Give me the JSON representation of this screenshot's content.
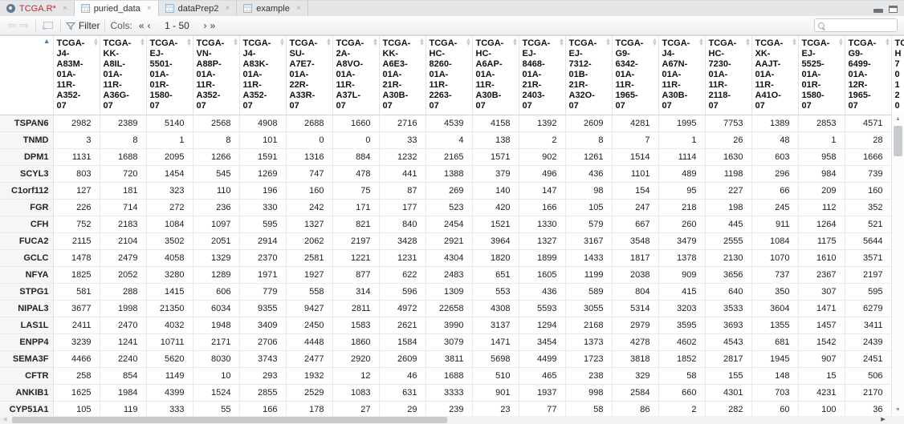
{
  "tabs": [
    {
      "label": "TCGA.R*",
      "icon": "r-script-icon",
      "text_color": "#cc2525",
      "active": false
    },
    {
      "label": "puried_data",
      "icon": "grid-icon",
      "text_color": "#333333",
      "active": true
    },
    {
      "label": "dataPrep2",
      "icon": "grid-icon",
      "text_color": "#333333",
      "active": false
    },
    {
      "label": "example",
      "icon": "grid-icon",
      "text_color": "#333333",
      "active": false
    }
  ],
  "icons": {
    "close": "×",
    "back": "⇦",
    "forward": "⇨",
    "sort_ascending": "▲",
    "sort_up": "▴",
    "sort_down": "▾",
    "scroll_up": "▲",
    "scroll_down": "▼",
    "scroll_left": "◀",
    "scroll_right": "▶"
  },
  "toolbar": {
    "filter_label": "Filter",
    "cols_label": "Cols:",
    "page_first": "«",
    "page_prev": "‹",
    "range_text": "1 - 50",
    "page_next": "›",
    "page_last": "»",
    "search_placeholder": ""
  },
  "colors": {
    "sort_accent": "#3e85c7",
    "active_tab_bg": "#fafbfc",
    "row_header_bg": "#f4f6f8"
  },
  "grid": {
    "sort": {
      "column": "row-names",
      "direction": "ascending"
    },
    "columns": [
      "TCGA-J4-A83M-01A-11R-A352-07",
      "TCGA-KK-A8IL-01A-11R-A36G-07",
      "TCGA-EJ-5501-01A-01R-1580-07",
      "TCGA-VN-A88P-01A-11R-A352-07",
      "TCGA-J4-A83K-01A-11R-A352-07",
      "TCGA-SU-A7E7-01A-22R-A33R-07",
      "TCGA-2A-A8VO-01A-11R-A37L-07",
      "TCGA-KK-A6E3-01A-21R-A30B-07",
      "TCGA-HC-8260-01A-11R-2263-07",
      "TCGA-HC-A6AP-01A-11R-A30B-07",
      "TCGA-EJ-8468-01A-21R-2403-07",
      "TCGA-EJ-7312-01B-21R-A32O-07",
      "TCGA-G9-6342-01A-11R-1965-07",
      "TCGA-J4-A67N-01A-11R-A30B-07",
      "TCGA-HC-7230-01A-11R-2118-07",
      "TCGA-XK-AAJT-01A-11R-A41O-07",
      "TCGA-EJ-5525-01A-01R-1580-07",
      "TCGA-G9-6499-01A-12R-1965-07"
    ],
    "partial_column_lines": [
      "TC",
      "H",
      "7",
      "0",
      "1",
      "2",
      "0"
    ],
    "rows": [
      {
        "name": "TSPAN6",
        "values": [
          2982,
          2389,
          5140,
          2568,
          4908,
          2688,
          1660,
          2716,
          4539,
          4158,
          1392,
          2609,
          4281,
          1995,
          7753,
          1389,
          2853,
          4571
        ]
      },
      {
        "name": "TNMD",
        "values": [
          3,
          8,
          1,
          8,
          101,
          0,
          0,
          33,
          4,
          138,
          2,
          8,
          7,
          1,
          26,
          48,
          1,
          28
        ]
      },
      {
        "name": "DPM1",
        "values": [
          1131,
          1688,
          2095,
          1266,
          1591,
          1316,
          884,
          1232,
          2165,
          1571,
          902,
          1261,
          1514,
          1114,
          1630,
          603,
          958,
          1666
        ]
      },
      {
        "name": "SCYL3",
        "values": [
          803,
          720,
          1454,
          545,
          1269,
          747,
          478,
          441,
          1388,
          379,
          496,
          436,
          1101,
          489,
          1198,
          296,
          984,
          739
        ]
      },
      {
        "name": "C1orf112",
        "values": [
          127,
          181,
          323,
          110,
          196,
          160,
          75,
          87,
          269,
          140,
          147,
          98,
          154,
          95,
          227,
          66,
          209,
          160
        ]
      },
      {
        "name": "FGR",
        "values": [
          226,
          714,
          272,
          236,
          330,
          242,
          171,
          177,
          523,
          420,
          166,
          105,
          247,
          218,
          198,
          245,
          112,
          352
        ]
      },
      {
        "name": "CFH",
        "values": [
          752,
          2183,
          1084,
          1097,
          595,
          1327,
          821,
          840,
          2454,
          1521,
          1330,
          579,
          667,
          260,
          445,
          911,
          1264,
          521
        ]
      },
      {
        "name": "FUCA2",
        "values": [
          2115,
          2104,
          3502,
          2051,
          2914,
          2062,
          2197,
          3428,
          2921,
          3964,
          1327,
          3167,
          3548,
          3479,
          2555,
          1084,
          1175,
          5644
        ]
      },
      {
        "name": "GCLC",
        "values": [
          1478,
          2479,
          4058,
          1329,
          2370,
          2581,
          1221,
          1231,
          4304,
          1820,
          1899,
          1433,
          1817,
          1378,
          2130,
          1070,
          1610,
          3571
        ]
      },
      {
        "name": "NFYA",
        "values": [
          1825,
          2052,
          3280,
          1289,
          1971,
          1927,
          877,
          622,
          2483,
          651,
          1605,
          1199,
          2038,
          909,
          3656,
          737,
          2367,
          2197
        ]
      },
      {
        "name": "STPG1",
        "values": [
          581,
          288,
          1415,
          606,
          779,
          558,
          314,
          596,
          1309,
          553,
          436,
          589,
          804,
          415,
          640,
          350,
          307,
          595
        ]
      },
      {
        "name": "NIPAL3",
        "values": [
          3677,
          1998,
          21350,
          6034,
          9355,
          9427,
          2811,
          4972,
          22658,
          4308,
          5593,
          3055,
          5314,
          3203,
          3533,
          3604,
          1471,
          6279
        ]
      },
      {
        "name": "LAS1L",
        "values": [
          2411,
          2470,
          4032,
          1948,
          3409,
          2450,
          1583,
          2621,
          3990,
          3137,
          1294,
          2168,
          2979,
          3595,
          3693,
          1355,
          1457,
          3411
        ]
      },
      {
        "name": "ENPP4",
        "values": [
          3239,
          1241,
          10711,
          2171,
          2706,
          4448,
          1860,
          1584,
          3079,
          1471,
          3454,
          1373,
          4278,
          4602,
          4543,
          681,
          1542,
          2439
        ]
      },
      {
        "name": "SEMA3F",
        "values": [
          4466,
          2240,
          5620,
          8030,
          3743,
          2477,
          2920,
          2609,
          3811,
          5698,
          4499,
          1723,
          3818,
          1852,
          2817,
          1945,
          907,
          2451
        ]
      },
      {
        "name": "CFTR",
        "values": [
          258,
          854,
          1149,
          10,
          293,
          1932,
          12,
          46,
          1688,
          510,
          465,
          238,
          329,
          58,
          155,
          148,
          15,
          506
        ]
      },
      {
        "name": "ANKIB1",
        "values": [
          1625,
          1984,
          4399,
          1524,
          2855,
          2529,
          1083,
          631,
          3333,
          901,
          1937,
          998,
          2584,
          660,
          4301,
          703,
          4231,
          2170
        ]
      },
      {
        "name": "CYP51A1",
        "values": [
          105,
          119,
          333,
          55,
          166,
          178,
          27,
          29,
          239,
          23,
          77,
          58,
          86,
          2,
          282,
          60,
          100,
          36
        ]
      }
    ]
  }
}
